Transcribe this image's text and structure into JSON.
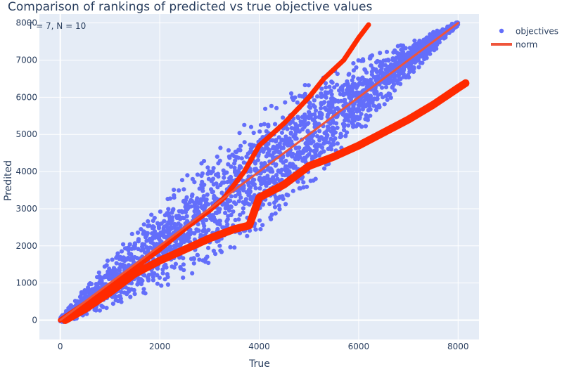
{
  "chart_data": {
    "type": "scatter",
    "title": "Comparison of rankings of predicted vs true objective values",
    "annotation": "T = 7, N = 10",
    "xlabel": "True",
    "ylabel": "Predited",
    "xlim": [
      -420,
      8420
    ],
    "ylim": [
      -520,
      8240
    ],
    "x_ticks": [
      0,
      2000,
      4000,
      6000,
      8000
    ],
    "y_ticks": [
      0,
      1000,
      2000,
      3000,
      4000,
      5000,
      6000,
      7000,
      8000
    ],
    "grid": true,
    "legend_position": "top-right",
    "series": [
      {
        "name": "objectives",
        "mode": "markers",
        "color": "#636efa",
        "approx_points": 8000,
        "envelope_x": [
          0,
          1000,
          2000,
          3000,
          4000,
          5000,
          6000,
          7000,
          8000
        ],
        "envelope_y_center": [
          0,
          1000,
          2000,
          3000,
          4000,
          5000,
          6000,
          7000,
          8000
        ],
        "envelope_y_halfwidth": [
          80,
          700,
          1200,
          1500,
          1600,
          1400,
          1000,
          500,
          60
        ]
      },
      {
        "name": "norm",
        "mode": "lines",
        "color": "#ef553b",
        "x": [
          0,
          8000
        ],
        "y": [
          0,
          8000
        ]
      },
      {
        "mode": "lines",
        "color": "#ff2a00",
        "x": [
          0,
          500,
          1000,
          1500,
          2000,
          2500,
          3000,
          3300,
          3700,
          4000,
          4500,
          5000,
          5300,
          5700,
          6000,
          6200
        ],
        "y": [
          0,
          450,
          900,
          1400,
          1900,
          2450,
          2950,
          3300,
          4000,
          4700,
          5300,
          6000,
          6500,
          7000,
          7600,
          7950
        ]
      },
      {
        "mode": "lines",
        "color": "#ff2a00",
        "x": [
          100,
          500,
          1000,
          1500,
          2000,
          2500,
          3000,
          3500,
          3800,
          4000,
          4500,
          5000,
          5500,
          6000,
          6500,
          7000,
          7500,
          8000,
          8150
        ],
        "y": [
          0,
          300,
          750,
          1250,
          1600,
          1900,
          2200,
          2450,
          2550,
          3300,
          3650,
          4150,
          4400,
          4700,
          5050,
          5400,
          5800,
          6250,
          6380
        ]
      }
    ]
  }
}
